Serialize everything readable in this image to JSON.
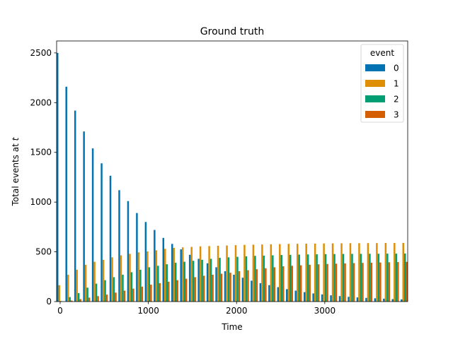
{
  "chart_data": {
    "type": "bar",
    "title": "Ground truth",
    "xlabel": "Time",
    "ylabel": "Total events at t",
    "x": [
      0,
      100,
      200,
      300,
      400,
      500,
      600,
      700,
      800,
      900,
      1000,
      1100,
      1200,
      1300,
      1400,
      1500,
      1600,
      1700,
      1800,
      1900,
      2000,
      2100,
      2200,
      2300,
      2400,
      2500,
      2600,
      2700,
      2800,
      2900,
      3000,
      3100,
      3200,
      3300,
      3400,
      3500,
      3600,
      3700,
      3800,
      3900
    ],
    "xlim": [
      -40,
      3940
    ],
    "ylim": [
      0,
      2620
    ],
    "xticks": [
      0,
      1000,
      2000,
      3000
    ],
    "xtick_labels": [
      "0",
      "1000",
      "2000",
      "3000"
    ],
    "yticks": [
      0,
      500,
      1000,
      1500,
      2000,
      2500
    ],
    "ytick_labels": [
      "0",
      "500",
      "1000",
      "1500",
      "2000",
      "2500"
    ],
    "grid": false,
    "legend": {
      "title": "event",
      "placement": "upper-right"
    },
    "series": [
      {
        "name": "0",
        "color": "#0173b2",
        "values": [
          2500,
          2160,
          1920,
          1710,
          1540,
          1390,
          1265,
          1120,
          1010,
          890,
          800,
          720,
          640,
          580,
          525,
          470,
          430,
          385,
          345,
          305,
          270,
          240,
          210,
          185,
          165,
          145,
          125,
          110,
          95,
          82,
          72,
          63,
          55,
          48,
          42,
          37,
          33,
          29,
          25,
          22
        ]
      },
      {
        "name": "1",
        "color": "#de8f05",
        "values": [
          165,
          270,
          320,
          370,
          400,
          420,
          445,
          465,
          480,
          495,
          505,
          515,
          530,
          540,
          545,
          550,
          555,
          558,
          561,
          564,
          567,
          570,
          572,
          574,
          576,
          578,
          580,
          581,
          582,
          583,
          584,
          585,
          586,
          587,
          587,
          588,
          588,
          589,
          589,
          590
        ]
      },
      {
        "name": "2",
        "color": "#029e73",
        "values": [
          5,
          45,
          85,
          140,
          180,
          215,
          245,
          270,
          295,
          320,
          345,
          360,
          375,
          390,
          400,
          410,
          420,
          430,
          440,
          445,
          450,
          455,
          460,
          462,
          465,
          468,
          470,
          472,
          474,
          475,
          477,
          478,
          479,
          480,
          480,
          481,
          481,
          482,
          482,
          483
        ]
      },
      {
        "name": "3",
        "color": "#d55e00",
        "values": [
          0,
          10,
          25,
          40,
          55,
          70,
          90,
          110,
          130,
          150,
          170,
          185,
          200,
          215,
          230,
          245,
          260,
          270,
          280,
          290,
          305,
          315,
          325,
          335,
          345,
          355,
          360,
          365,
          370,
          375,
          378,
          381,
          384,
          387,
          389,
          391,
          393,
          395,
          397,
          399
        ]
      }
    ]
  }
}
